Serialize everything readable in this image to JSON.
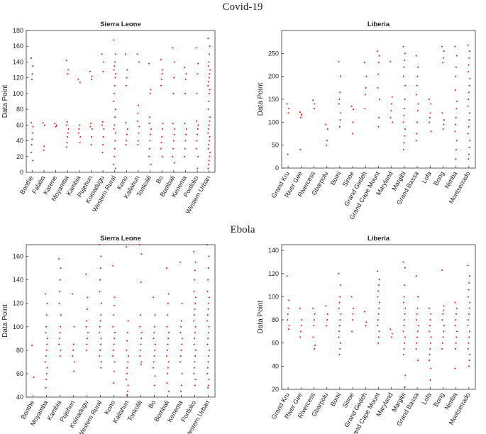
{
  "headings": [
    "Covid-19",
    "Ebola"
  ],
  "chart_data": [
    {
      "type": "strip",
      "title": "Sierra Leone",
      "ylabel": "Data Point",
      "color": "#ff0000",
      "ylim": [
        0,
        180
      ],
      "yticks": [
        0,
        20,
        40,
        60,
        80,
        100,
        120,
        140,
        160,
        180
      ],
      "categories": [
        "Bonthe",
        "Falaba",
        "Karene",
        "Moyamba",
        "Kambia",
        "Pujehun",
        "Koinadugu",
        "Western Rural",
        "Kono",
        "Kailahun",
        "Tonkolili",
        "Bo",
        "Bombali",
        "Kenema",
        "Portloko",
        "Western Urban"
      ],
      "values": [
        [
          145,
          135,
          125,
          118,
          63,
          58,
          50,
          42,
          35,
          25,
          15
        ],
        [
          63,
          60,
          33,
          28
        ],
        [
          62,
          60,
          58
        ],
        [
          142,
          130,
          125,
          64,
          60,
          55,
          50,
          45,
          38,
          32
        ],
        [
          118,
          114,
          60,
          55,
          50,
          45,
          38
        ],
        [
          128,
          122,
          118,
          62,
          58,
          55,
          45,
          35
        ],
        [
          150,
          140,
          128,
          64,
          60,
          55,
          45,
          35,
          25
        ],
        [
          168,
          150,
          140,
          135,
          130,
          125,
          120,
          110,
          100,
          90,
          80,
          70,
          60,
          55,
          50,
          40,
          30,
          20,
          10,
          5
        ],
        [
          150,
          130,
          120,
          110,
          63,
          55,
          48,
          40,
          35
        ],
        [
          150,
          140,
          85,
          75,
          65,
          58,
          50,
          40,
          35
        ],
        [
          138,
          105,
          100,
          70,
          62,
          55,
          48,
          40,
          30,
          20,
          10
        ],
        [
          143,
          130,
          125,
          118,
          110,
          62,
          55,
          45,
          38,
          30,
          20
        ],
        [
          158,
          140,
          120,
          100,
          62,
          55,
          48,
          40,
          30,
          20,
          12
        ],
        [
          133,
          125,
          118,
          100,
          62,
          55,
          48,
          40,
          30,
          20
        ],
        [
          158,
          138,
          125,
          100,
          65,
          60,
          55,
          48,
          40,
          30,
          20,
          5
        ],
        [
          170,
          160,
          150,
          140,
          135,
          130,
          125,
          120,
          115,
          110,
          105,
          100,
          90,
          80,
          70,
          65,
          60,
          55,
          50,
          45,
          40,
          35,
          30,
          25,
          20,
          15,
          10,
          5
        ]
      ]
    },
    {
      "type": "strip",
      "title": "Liberia",
      "ylabel": "Data Point",
      "color": "#ff0000",
      "ylim": [
        0,
        300
      ],
      "yticks": [
        0,
        50,
        100,
        150,
        200,
        250
      ],
      "categories": [
        "Grand Kru",
        "River Gee",
        "Rivercess",
        "Gbarpolu",
        "Bomi",
        "Sinoe",
        "Grand Gedeh",
        "Grand Cape Mount",
        "Maryland",
        "Margibi",
        "Grand Bassa",
        "Lofa",
        "Bong",
        "Nimba",
        "Montserrado"
      ],
      "values": [
        [
          140,
          130,
          120,
          30
        ],
        [
          122,
          118,
          115,
          110,
          40
        ],
        [
          148,
          140,
          130
        ],
        [
          95,
          85,
          60,
          50
        ],
        [
          232,
          200,
          165,
          150,
          140,
          120,
          105,
          90
        ],
        [
          135,
          128,
          100,
          75
        ],
        [
          230,
          200,
          175,
          160,
          130
        ],
        [
          255,
          245,
          230,
          205,
          175,
          150,
          110,
          90
        ],
        [
          232,
          155,
          140,
          125,
          110,
          100
        ],
        [
          265,
          250,
          235,
          220,
          200,
          180,
          150,
          130,
          115,
          100,
          85,
          70,
          55,
          40
        ],
        [
          245,
          220,
          200,
          180,
          160,
          140,
          125,
          100,
          75,
          60
        ],
        [
          150,
          140,
          120,
          110,
          100,
          80
        ],
        [
          265,
          255,
          240,
          230,
          120,
          105,
          95,
          85
        ],
        [
          265,
          245,
          220,
          200,
          170,
          145,
          130,
          110,
          95,
          80,
          60,
          40,
          20
        ],
        [
          268,
          255,
          240,
          225,
          210,
          195,
          180,
          165,
          150,
          135,
          120,
          105,
          90,
          75,
          60,
          45,
          30,
          20
        ]
      ]
    },
    {
      "type": "strip",
      "title": "Sierra Leone",
      "ylabel": "Data Point",
      "color": "#ff0000",
      "ylim": [
        40,
        170
      ],
      "yticks": [
        40,
        60,
        80,
        100,
        120,
        140,
        160
      ],
      "categories": [
        "Bonthe",
        "Moyamba",
        "Kambia",
        "Pujehun",
        "Koinadugu",
        "Western Rural",
        "Kono",
        "Kailahun",
        "Tonkolili",
        "Bo",
        "Bombali",
        "Kenema",
        "Portloko",
        "Western Urban"
      ],
      "values": [
        [
          84,
          57
        ],
        [
          128,
          120,
          110,
          100,
          95,
          90,
          85,
          80,
          75,
          70,
          65,
          60,
          55,
          48
        ],
        [
          158,
          150,
          140,
          130,
          120,
          110,
          100,
          95,
          90,
          85,
          80,
          75
        ],
        [
          128,
          100,
          85,
          80,
          75,
          70,
          62
        ],
        [
          145,
          125,
          115,
          105,
          100,
          95,
          90,
          85,
          80
        ],
        [
          170,
          160,
          150,
          140,
          130,
          120,
          110,
          105,
          100,
          95,
          90,
          85,
          80,
          75,
          70,
          65
        ],
        [
          152,
          125,
          118,
          110,
          100,
          95,
          90,
          85,
          80,
          75,
          70,
          62,
          52
        ],
        [
          168,
          105,
          95,
          88,
          80,
          75,
          70,
          65,
          60,
          55,
          50,
          45,
          42
        ],
        [
          170,
          162,
          138,
          110,
          100,
          95,
          90,
          85,
          80,
          75,
          70,
          68
        ],
        [
          125,
          110,
          100,
          95,
          90,
          85,
          80,
          75,
          70,
          65,
          58,
          50
        ],
        [
          150,
          128,
          120,
          110,
          100,
          95,
          90,
          85,
          80,
          75,
          70,
          65,
          60,
          52,
          45
        ],
        [
          155,
          120,
          105,
          100,
          95,
          90,
          85,
          80,
          75,
          70,
          60,
          50,
          45
        ],
        [
          164,
          155,
          148,
          140,
          130,
          125,
          120,
          115,
          110,
          105,
          100,
          95,
          90,
          85,
          80,
          75,
          70,
          65,
          60,
          55,
          50
        ],
        [
          170,
          160,
          150,
          140,
          130,
          125,
          120,
          115,
          110,
          105,
          100,
          95,
          90,
          85,
          80,
          75,
          70,
          65,
          60,
          55,
          50,
          48
        ]
      ]
    },
    {
      "type": "strip",
      "title": "Liberia",
      "ylabel": "Data Point",
      "color": "#ff0000",
      "ylim": [
        20,
        145
      ],
      "yticks": [
        20,
        40,
        60,
        80,
        100,
        120,
        140
      ],
      "categories": [
        "Grand Kru",
        "River Gee",
        "Rivercess",
        "Gbarpolu",
        "Bomi",
        "Sinoe",
        "Grand Gedeh",
        "Grand Cape Mount",
        "Maryland",
        "Margibi",
        "Grand Bassa",
        "Lofa",
        "Bong",
        "Nimba",
        "Montserrado"
      ],
      "values": [
        [
          118,
          97,
          90,
          85,
          80,
          75,
          72
        ],
        [
          90,
          80,
          75,
          70,
          65
        ],
        [
          90,
          85,
          80,
          75,
          65,
          58,
          55
        ],
        [
          92,
          85,
          80,
          75
        ],
        [
          120,
          110,
          100,
          95,
          90,
          85,
          80,
          75,
          70,
          65,
          60,
          55,
          50
        ],
        [
          100,
          90,
          85,
          80,
          70
        ],
        [
          87,
          78,
          75
        ],
        [
          122,
          115,
          110,
          105,
          100,
          95,
          90,
          85,
          80,
          75,
          70,
          65,
          60
        ],
        [
          72,
          68,
          65
        ],
        [
          130,
          125,
          110,
          100,
          95,
          90,
          85,
          80,
          75,
          70,
          65,
          60,
          55,
          50,
          32,
          22
        ],
        [
          118,
          100,
          90,
          85,
          80,
          75,
          70,
          65,
          60,
          55,
          45
        ],
        [
          90,
          85,
          80,
          75,
          70,
          65,
          60,
          55,
          50,
          45,
          38,
          28
        ],
        [
          123,
          92,
          88,
          85,
          80,
          75,
          70,
          65,
          60,
          55
        ],
        [
          95,
          90,
          85,
          80,
          75,
          70,
          65,
          60,
          55,
          38
        ],
        [
          127,
          118,
          112,
          106,
          100,
          95,
          90,
          85,
          80,
          75,
          70,
          65,
          60,
          55,
          50,
          45,
          40
        ]
      ]
    }
  ]
}
